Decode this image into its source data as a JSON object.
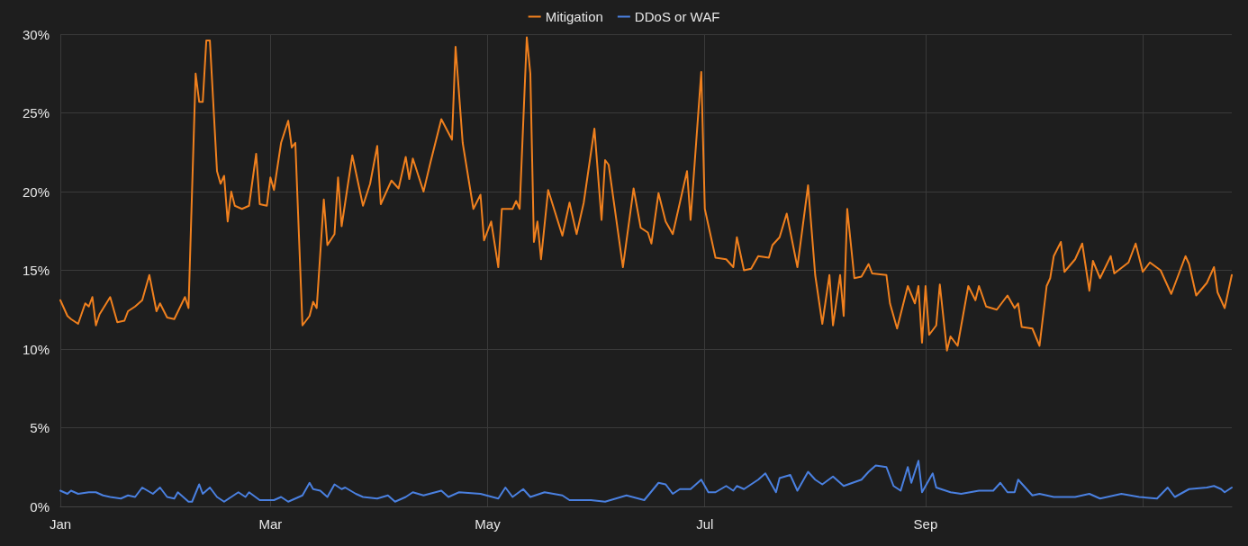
{
  "chart_data": {
    "type": "line",
    "legend": "top",
    "grid": true,
    "xlim": [
      "--01-01",
      "--11-26"
    ],
    "xticks": [
      {
        "value": "--01-01",
        "label": "Jan"
      },
      {
        "value": "--03-01",
        "label": "Mar"
      },
      {
        "value": "--05-01",
        "label": "May"
      },
      {
        "value": "--07-01",
        "label": "Jul"
      },
      {
        "value": "--09-01",
        "label": "Sep"
      },
      {
        "value": "--11-01",
        "label": null
      }
    ],
    "ylim": [
      0,
      30
    ],
    "yticks": [
      {
        "value": 0,
        "label": "0%"
      },
      {
        "value": 5,
        "label": "5%"
      },
      {
        "value": 10,
        "label": "10%"
      },
      {
        "value": 15,
        "label": "15%"
      },
      {
        "value": 20,
        "label": "20%"
      },
      {
        "value": 25,
        "label": "25%"
      },
      {
        "value": 30,
        "label": "30%"
      }
    ],
    "series": [
      {
        "name": "Mitigation",
        "color": "#f0801e",
        "x": [
          "--01-01",
          "--01-03",
          "--01-04",
          "--01-06",
          "--01-08",
          "--01-09",
          "--01-10",
          "--01-11",
          "--01-12",
          "--01-15",
          "--01-17",
          "--01-19",
          "--01-20",
          "--01-22",
          "--01-24",
          "--01-26",
          "--01-28",
          "--01-29",
          "--01-31",
          "--02-02",
          "--02-05",
          "--02-06",
          "--02-08",
          "--02-09",
          "--02-10",
          "--02-11",
          "--02-12",
          "--02-14",
          "--02-15",
          "--02-16",
          "--02-17",
          "--02-18",
          "--02-19",
          "--02-21",
          "--02-23",
          "--02-25",
          "--02-26",
          "--02-28",
          "--03-01",
          "--03-02",
          "--03-04",
          "--03-06",
          "--03-07",
          "--03-08",
          "--03-10",
          "--03-12",
          "--03-13",
          "--03-14",
          "--03-16",
          "--03-17",
          "--03-19",
          "--03-20",
          "--03-21",
          "--03-22",
          "--03-24",
          "--03-27",
          "--03-29",
          "--03-31",
          "--04-01",
          "--04-04",
          "--04-06",
          "--04-08",
          "--04-09",
          "--04-10",
          "--04-13",
          "--04-15",
          "--04-18",
          "--04-21",
          "--04-22",
          "--04-24",
          "--04-27",
          "--04-29",
          "--04-30",
          "--05-02",
          "--05-04",
          "--05-05",
          "--05-08",
          "--05-09",
          "--05-10",
          "--05-12",
          "--05-13",
          "--05-14",
          "--05-15",
          "--05-16",
          "--05-18",
          "--05-22",
          "--05-24",
          "--05-26",
          "--05-28",
          "--05-31",
          "--06-02",
          "--06-03",
          "--06-04",
          "--06-08",
          "--06-11",
          "--06-13",
          "--06-15",
          "--06-16",
          "--06-18",
          "--06-20",
          "--06-22",
          "--06-26",
          "--06-27",
          "--06-30",
          "--07-01",
          "--07-04",
          "--07-07",
          "--07-09",
          "--07-10",
          "--07-12",
          "--07-14",
          "--07-16",
          "--07-19",
          "--07-20",
          "--07-22",
          "--07-24",
          "--07-27",
          "--07-30",
          "--08-01",
          "--08-03",
          "--08-05",
          "--08-06",
          "--08-08",
          "--08-09",
          "--08-10",
          "--08-12",
          "--08-14",
          "--08-16",
          "--08-17",
          "--08-21",
          "--08-22",
          "--08-24",
          "--08-27",
          "--08-29",
          "--08-30",
          "--08-31",
          "--09-01",
          "--09-02",
          "--09-04",
          "--09-05",
          "--09-07",
          "--09-08",
          "--09-10",
          "--09-13",
          "--09-15",
          "--09-16",
          "--09-18",
          "--09-21",
          "--09-24",
          "--09-26",
          "--09-27",
          "--09-28",
          "--10-01",
          "--10-03",
          "--10-05",
          "--10-06",
          "--10-07",
          "--10-09",
          "--10-10",
          "--10-13",
          "--10-15",
          "--10-17",
          "--10-18",
          "--10-20",
          "--10-23",
          "--10-24",
          "--10-28",
          "--10-30",
          "--11-01",
          "--11-03",
          "--11-06",
          "--11-09",
          "--11-13",
          "--11-14",
          "--11-16",
          "--11-19",
          "--11-21",
          "--11-22",
          "--11-24",
          "--11-26"
        ],
        "values": [
          13.1,
          12.1,
          11.9,
          11.6,
          12.9,
          12.7,
          13.3,
          11.5,
          12.2,
          13.3,
          11.7,
          11.8,
          12.4,
          12.7,
          13.1,
          14.7,
          12.4,
          12.9,
          12.0,
          11.9,
          13.3,
          12.6,
          27.5,
          25.7,
          25.7,
          29.6,
          29.6,
          21.3,
          20.5,
          21.0,
          18.1,
          20.0,
          19.1,
          18.9,
          19.1,
          22.4,
          19.2,
          19.1,
          20.9,
          20.1,
          23.1,
          24.5,
          22.8,
          23.1,
          11.5,
          12.1,
          13.0,
          12.6,
          19.5,
          16.6,
          17.3,
          20.9,
          17.8,
          19.3,
          22.3,
          19.1,
          20.5,
          22.9,
          19.2,
          20.7,
          20.2,
          22.2,
          20.8,
          22.1,
          20.0,
          21.9,
          24.6,
          23.3,
          29.2,
          23.1,
          18.9,
          19.8,
          16.9,
          18.1,
          15.2,
          18.9,
          18.9,
          19.4,
          18.9,
          29.8,
          27.5,
          16.8,
          18.1,
          15.7,
          20.1,
          17.2,
          19.3,
          17.3,
          19.3,
          24.0,
          18.2,
          22.0,
          21.7,
          15.2,
          20.2,
          17.7,
          17.4,
          16.7,
          19.9,
          18.1,
          17.3,
          21.3,
          18.2,
          27.6,
          18.9,
          15.8,
          15.7,
          15.2,
          17.1,
          15.0,
          15.1,
          15.9,
          15.8,
          16.6,
          17.1,
          18.6,
          15.2,
          20.4,
          14.7,
          11.6,
          14.7,
          11.5,
          14.7,
          12.1,
          18.9,
          14.5,
          14.6,
          15.4,
          14.8,
          14.7,
          12.9,
          11.3,
          14.0,
          12.9,
          14.0,
          10.4,
          14.0,
          10.9,
          11.5,
          14.1,
          9.9,
          10.8,
          10.2,
          14.0,
          13.1,
          14.0,
          12.7,
          12.5,
          13.4,
          12.6,
          12.9,
          11.4,
          11.3,
          10.2,
          14.0,
          14.5,
          15.9,
          16.8,
          14.9,
          15.7,
          16.7,
          13.7,
          15.6,
          14.5,
          15.9,
          14.8,
          15.5,
          16.7,
          14.9,
          15.5,
          15.0,
          13.5,
          15.9,
          15.4,
          13.4,
          14.2,
          15.2,
          13.6,
          12.6,
          14.7
        ]
      },
      {
        "name": "DDoS or WAF",
        "color": "#4a80e0",
        "x": [
          "--01-01",
          "--01-03",
          "--01-04",
          "--01-06",
          "--01-09",
          "--01-11",
          "--01-13",
          "--01-15",
          "--01-18",
          "--01-20",
          "--01-22",
          "--01-24",
          "--01-27",
          "--01-29",
          "--01-31",
          "--02-02",
          "--02-03",
          "--02-06",
          "--02-07",
          "--02-09",
          "--02-10",
          "--02-12",
          "--02-14",
          "--02-16",
          "--02-20",
          "--02-22",
          "--02-23",
          "--02-26",
          "--03-02",
          "--03-04",
          "--03-06",
          "--03-10",
          "--03-12",
          "--03-13",
          "--03-15",
          "--03-17",
          "--03-19",
          "--03-21",
          "--03-22",
          "--03-25",
          "--03-27",
          "--03-31",
          "--04-03",
          "--04-05",
          "--04-08",
          "--04-10",
          "--04-13",
          "--04-18",
          "--04-20",
          "--04-23",
          "--04-29",
          "--05-04",
          "--05-06",
          "--05-08",
          "--05-11",
          "--05-13",
          "--05-17",
          "--05-22",
          "--05-24",
          "--05-30",
          "--06-03",
          "--06-09",
          "--06-14",
          "--06-18",
          "--06-20",
          "--06-22",
          "--06-24",
          "--06-27",
          "--06-30",
          "--07-02",
          "--07-04",
          "--07-07",
          "--07-09",
          "--07-10",
          "--07-12",
          "--07-16",
          "--07-18",
          "--07-21",
          "--07-22",
          "--07-25",
          "--07-27",
          "--07-30",
          "--08-01",
          "--08-03",
          "--08-06",
          "--08-09",
          "--08-14",
          "--08-16",
          "--08-18",
          "--08-21",
          "--08-23",
          "--08-25",
          "--08-27",
          "--08-28",
          "--08-30",
          "--08-31",
          "--09-03",
          "--09-04",
          "--09-08",
          "--09-11",
          "--09-16",
          "--09-20",
          "--09-22",
          "--09-24",
          "--09-26",
          "--09-27",
          "--10-01",
          "--10-03",
          "--10-07",
          "--10-13",
          "--10-17",
          "--10-20",
          "--10-26",
          "--10-31",
          "--11-05",
          "--11-08",
          "--11-10",
          "--11-14",
          "--11-19",
          "--11-21",
          "--11-23",
          "--11-24",
          "--11-26"
        ],
        "values": [
          1.0,
          0.8,
          1.0,
          0.8,
          0.9,
          0.9,
          0.7,
          0.6,
          0.5,
          0.7,
          0.6,
          1.2,
          0.8,
          1.2,
          0.6,
          0.5,
          0.9,
          0.3,
          0.3,
          1.4,
          0.8,
          1.2,
          0.6,
          0.3,
          0.9,
          0.6,
          0.9,
          0.4,
          0.4,
          0.6,
          0.3,
          0.7,
          1.5,
          1.1,
          1.0,
          0.6,
          1.4,
          1.1,
          1.2,
          0.8,
          0.6,
          0.5,
          0.7,
          0.3,
          0.6,
          0.9,
          0.7,
          1.0,
          0.6,
          0.9,
          0.8,
          0.5,
          1.2,
          0.6,
          1.1,
          0.6,
          0.9,
          0.7,
          0.4,
          0.4,
          0.3,
          0.7,
          0.4,
          1.5,
          1.4,
          0.8,
          1.1,
          1.1,
          1.7,
          0.9,
          0.9,
          1.3,
          1.0,
          1.3,
          1.1,
          1.7,
          2.1,
          0.9,
          1.8,
          2.0,
          1.0,
          2.2,
          1.7,
          1.4,
          1.9,
          1.3,
          1.7,
          2.2,
          2.6,
          2.5,
          1.3,
          1.0,
          2.5,
          1.5,
          2.9,
          0.9,
          2.1,
          1.2,
          0.9,
          0.8,
          1.0,
          1.0,
          1.5,
          0.9,
          0.9,
          1.7,
          0.7,
          0.8,
          0.6,
          0.6,
          0.8,
          0.5,
          0.8,
          0.6,
          0.5,
          1.2,
          0.6,
          1.1,
          1.2,
          1.3,
          1.1,
          0.9,
          1.2
        ]
      }
    ]
  }
}
